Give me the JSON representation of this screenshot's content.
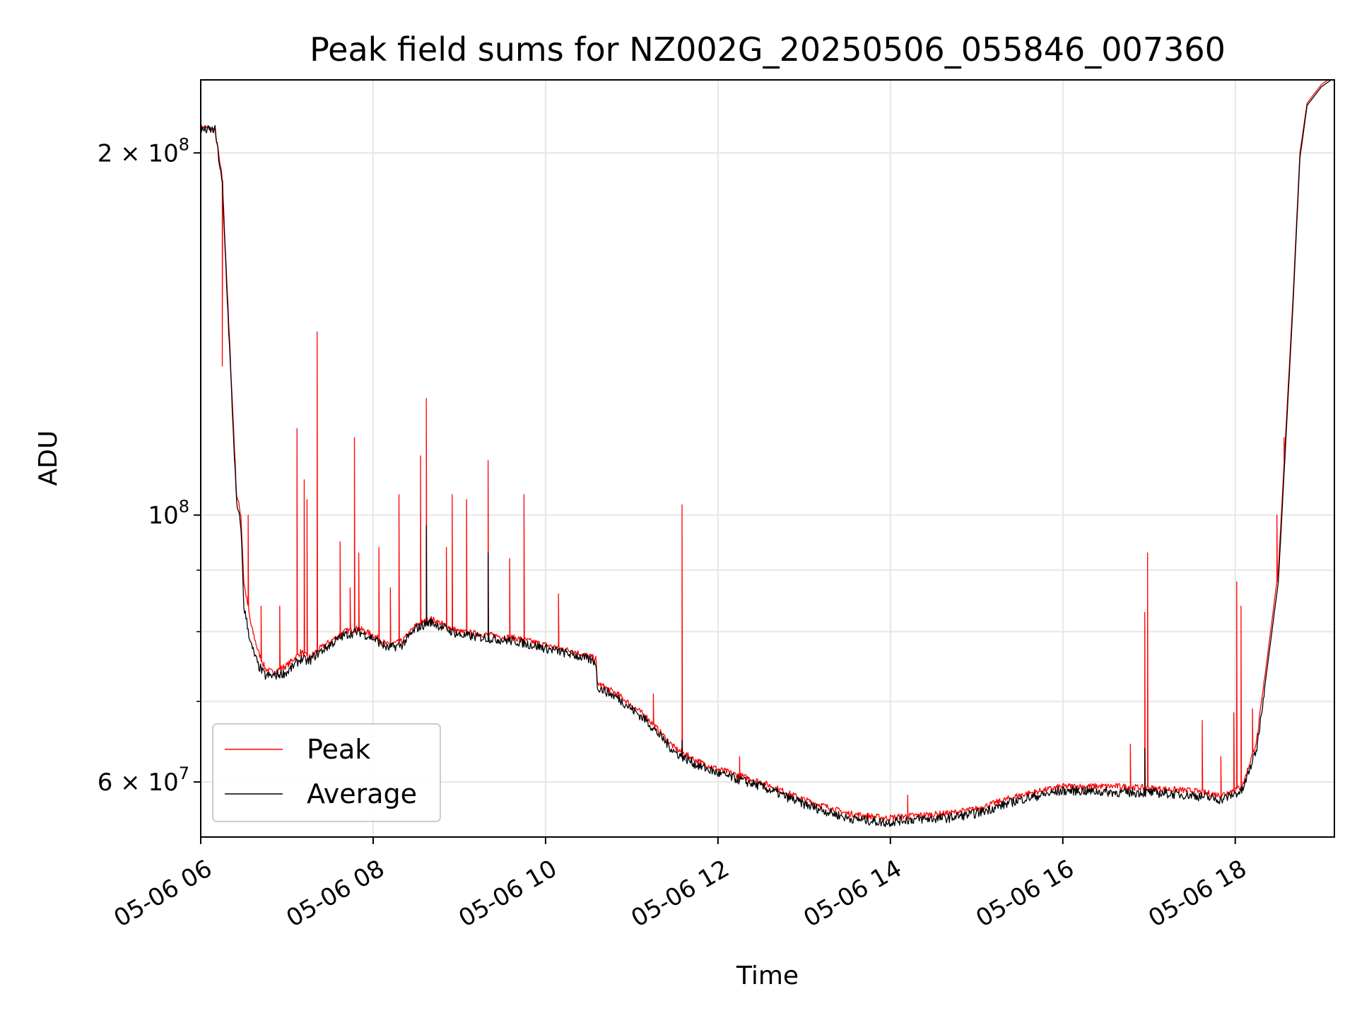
{
  "chart_data": {
    "type": "line",
    "title": "Peak field sums for NZ002G_20250506_055846_007360",
    "xlabel": "Time",
    "ylabel": "ADU",
    "x_axis": {
      "kind": "datetime",
      "xlim": [
        "2025-05-06T06:00",
        "2025-05-06T19:09"
      ],
      "tick_labels": [
        "05-06 06",
        "05-06 08",
        "05-06 10",
        "05-06 12",
        "05-06 14",
        "05-06 16",
        "05-06 18"
      ]
    },
    "y_axis": {
      "scale": "log",
      "ylim": [
        54000000,
        230000000
      ],
      "major_tick_labels": [
        {
          "value": 60000000,
          "mantissa": "6",
          "exponent": "7"
        },
        {
          "value": 100000000,
          "mantissa": "",
          "exponent": "8"
        },
        {
          "value": 200000000,
          "mantissa": "2",
          "exponent": "8"
        }
      ],
      "minor_ticks": [
        70000000,
        80000000,
        90000000
      ]
    },
    "grid": true,
    "legend_position": "lower-left",
    "series": [
      {
        "name": "Peak",
        "color": "#ff0000",
        "x": [
          "06:00",
          "06:10",
          "06:15",
          "06:20",
          "06:25",
          "06:28",
          "06:30",
          "06:35",
          "06:40",
          "06:45",
          "06:50",
          "07:00",
          "07:10",
          "07:15",
          "07:20",
          "07:30",
          "07:40",
          "07:50",
          "08:00",
          "08:10",
          "08:20",
          "08:30",
          "08:40",
          "08:50",
          "09:00",
          "09:20",
          "09:40",
          "10:00",
          "10:20",
          "10:35",
          "10:36",
          "10:50",
          "11:10",
          "11:30",
          "11:45",
          "12:00",
          "12:30",
          "13:00",
          "13:30",
          "13:57",
          "14:10",
          "14:40",
          "15:00",
          "15:30",
          "16:00",
          "16:10",
          "16:40",
          "17:00",
          "17:30",
          "17:50",
          "18:05",
          "18:15",
          "18:30",
          "18:40",
          "18:45",
          "18:50",
          "19:00",
          "19:09"
        ],
        "y": [
          210000000,
          209000000,
          190000000,
          140000000,
          104000000,
          100000000,
          88000000,
          81000000,
          77000000,
          74500000,
          74000000,
          75000000,
          77000000,
          76000000,
          77000000,
          78500000,
          80000000,
          80500000,
          79500000,
          78000000,
          78500000,
          81000000,
          82000000,
          81000000,
          80000000,
          79500000,
          79000000,
          78000000,
          77000000,
          76000000,
          72500000,
          71000000,
          68000000,
          64000000,
          62500000,
          61500000,
          60000000,
          58000000,
          56500000,
          56000000,
          56200000,
          56500000,
          57000000,
          58500000,
          59500000,
          59500000,
          59500000,
          59300000,
          59000000,
          58500000,
          59500000,
          65000000,
          90000000,
          150000000,
          200000000,
          220000000,
          228000000,
          232000000
        ],
        "spikes": [
          {
            "x": "06:15",
            "y": 133000000
          },
          {
            "x": "06:33",
            "y": 100000000
          },
          {
            "x": "06:42",
            "y": 84000000
          },
          {
            "x": "06:55",
            "y": 84000000
          },
          {
            "x": "07:07",
            "y": 118000000
          },
          {
            "x": "07:12",
            "y": 107000000
          },
          {
            "x": "07:14",
            "y": 103000000
          },
          {
            "x": "07:21",
            "y": 142000000
          },
          {
            "x": "07:37",
            "y": 95000000
          },
          {
            "x": "07:44",
            "y": 87000000
          },
          {
            "x": "07:47",
            "y": 116000000
          },
          {
            "x": "07:50",
            "y": 93000000
          },
          {
            "x": "08:04",
            "y": 94000000
          },
          {
            "x": "08:12",
            "y": 87000000
          },
          {
            "x": "08:18",
            "y": 104000000
          },
          {
            "x": "08:33",
            "y": 112000000
          },
          {
            "x": "08:37",
            "y": 125000000
          },
          {
            "x": "08:51",
            "y": 94000000
          },
          {
            "x": "08:55",
            "y": 104000000
          },
          {
            "x": "09:05",
            "y": 103000000
          },
          {
            "x": "09:20",
            "y": 111000000
          },
          {
            "x": "09:35",
            "y": 92000000
          },
          {
            "x": "09:45",
            "y": 104000000
          },
          {
            "x": "10:09",
            "y": 86000000
          },
          {
            "x": "11:15",
            "y": 71000000
          },
          {
            "x": "11:35",
            "y": 102000000
          },
          {
            "x": "12:15",
            "y": 63000000
          },
          {
            "x": "14:12",
            "y": 58500000
          },
          {
            "x": "16:47",
            "y": 64500000
          },
          {
            "x": "16:57",
            "y": 83000000
          },
          {
            "x": "16:59",
            "y": 93000000
          },
          {
            "x": "17:37",
            "y": 67500000
          },
          {
            "x": "17:50",
            "y": 63000000
          },
          {
            "x": "17:59",
            "y": 68500000
          },
          {
            "x": "18:01",
            "y": 88000000
          },
          {
            "x": "18:04",
            "y": 84000000
          },
          {
            "x": "18:12",
            "y": 69000000
          },
          {
            "x": "18:29",
            "y": 100000000
          },
          {
            "x": "18:34",
            "y": 116000000
          }
        ]
      },
      {
        "name": "Average",
        "color": "#000000",
        "x": [
          "06:00",
          "06:10",
          "06:15",
          "06:20",
          "06:25",
          "06:28",
          "06:30",
          "06:35",
          "06:40",
          "06:45",
          "06:50",
          "07:00",
          "07:10",
          "07:15",
          "07:20",
          "07:30",
          "07:40",
          "07:50",
          "08:00",
          "08:10",
          "08:20",
          "08:30",
          "08:40",
          "08:50",
          "09:00",
          "09:20",
          "09:40",
          "10:00",
          "10:20",
          "10:35",
          "10:36",
          "10:50",
          "11:10",
          "11:30",
          "11:45",
          "12:00",
          "12:30",
          "13:00",
          "13:30",
          "13:57",
          "14:10",
          "14:40",
          "15:00",
          "15:30",
          "16:00",
          "16:10",
          "16:40",
          "17:00",
          "17:30",
          "17:50",
          "18:05",
          "18:15",
          "18:30",
          "18:40",
          "18:45",
          "18:50",
          "19:00",
          "19:09"
        ],
        "y": [
          209000000,
          209000000,
          188000000,
          138000000,
          102000000,
          98000000,
          84000000,
          78000000,
          75000000,
          73500000,
          73500000,
          74000000,
          76000000,
          75500000,
          76500000,
          78000000,
          79500000,
          80000000,
          79000000,
          77500000,
          78000000,
          80500000,
          81500000,
          80500000,
          79500000,
          79000000,
          78500000,
          77500000,
          76500000,
          75500000,
          72000000,
          70500000,
          67500000,
          63500000,
          62000000,
          61000000,
          59500000,
          57500000,
          56000000,
          55500000,
          55800000,
          56000000,
          56500000,
          58000000,
          59000000,
          59000000,
          58800000,
          58800000,
          58500000,
          58000000,
          59000000,
          64000000,
          88000000,
          148000000,
          198000000,
          219000000,
          227000000,
          231000000
        ],
        "spikes": [
          {
            "x": "08:37",
            "y": 98000000
          },
          {
            "x": "09:20",
            "y": 93000000
          },
          {
            "x": "11:35",
            "y": 65000000
          },
          {
            "x": "16:57",
            "y": 64000000
          }
        ]
      }
    ]
  }
}
